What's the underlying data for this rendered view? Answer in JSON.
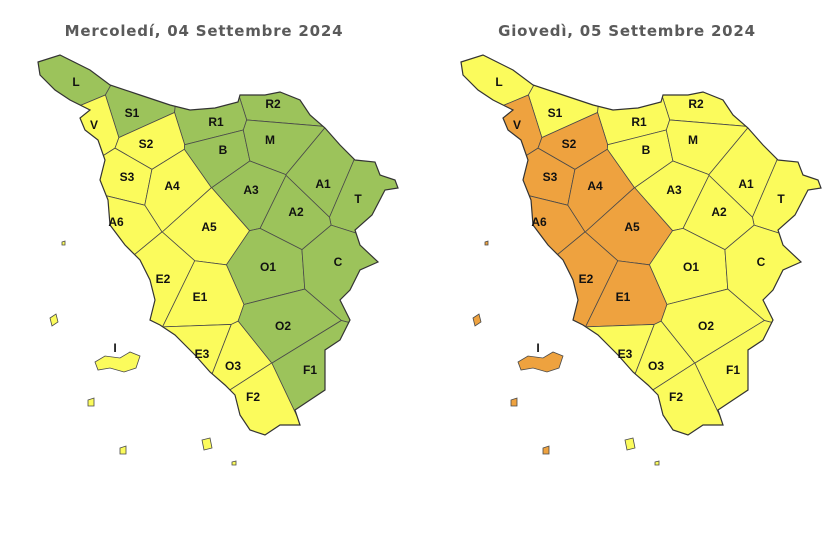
{
  "maps": [
    {
      "title": "Mercoledí, 04 Settembre 2024",
      "zones": [
        {
          "label": "L",
          "color": "#9cc35b"
        },
        {
          "label": "S1",
          "color": "#9cc35b"
        },
        {
          "label": "R2",
          "color": "#9cc35b"
        },
        {
          "label": "R1",
          "color": "#9cc35b"
        },
        {
          "label": "V",
          "color": "#fbfb5c"
        },
        {
          "label": "S2",
          "color": "#fbfb5c"
        },
        {
          "label": "B",
          "color": "#9cc35b"
        },
        {
          "label": "M",
          "color": "#9cc35b"
        },
        {
          "label": "S3",
          "color": "#fbfb5c"
        },
        {
          "label": "A4",
          "color": "#fbfb5c"
        },
        {
          "label": "A3",
          "color": "#9cc35b"
        },
        {
          "label": "A1",
          "color": "#9cc35b"
        },
        {
          "label": "T",
          "color": "#9cc35b"
        },
        {
          "label": "A6",
          "color": "#fbfb5c"
        },
        {
          "label": "A2",
          "color": "#9cc35b"
        },
        {
          "label": "A5",
          "color": "#fbfb5c"
        },
        {
          "label": "E2",
          "color": "#fbfb5c"
        },
        {
          "label": "O1",
          "color": "#9cc35b"
        },
        {
          "label": "C",
          "color": "#9cc35b"
        },
        {
          "label": "E1",
          "color": "#fbfb5c"
        },
        {
          "label": "O2",
          "color": "#9cc35b"
        },
        {
          "label": "I",
          "color": "#fbfb5c"
        },
        {
          "label": "E3",
          "color": "#fbfb5c"
        },
        {
          "label": "O3",
          "color": "#fbfb5c"
        },
        {
          "label": "F1",
          "color": "#9cc35b"
        },
        {
          "label": "F2",
          "color": "#fbfb5c"
        }
      ]
    },
    {
      "title": "Giovedì, 05 Settembre 2024",
      "zones": [
        {
          "label": "L",
          "color": "#fbfb5c"
        },
        {
          "label": "S1",
          "color": "#fbfb5c"
        },
        {
          "label": "R2",
          "color": "#fbfb5c"
        },
        {
          "label": "R1",
          "color": "#fbfb5c"
        },
        {
          "label": "V",
          "color": "#eea23f"
        },
        {
          "label": "S2",
          "color": "#eea23f"
        },
        {
          "label": "B",
          "color": "#fbfb5c"
        },
        {
          "label": "M",
          "color": "#fbfb5c"
        },
        {
          "label": "S3",
          "color": "#eea23f"
        },
        {
          "label": "A4",
          "color": "#eea23f"
        },
        {
          "label": "A3",
          "color": "#fbfb5c"
        },
        {
          "label": "A1",
          "color": "#fbfb5c"
        },
        {
          "label": "T",
          "color": "#fbfb5c"
        },
        {
          "label": "A6",
          "color": "#eea23f"
        },
        {
          "label": "A2",
          "color": "#fbfb5c"
        },
        {
          "label": "A5",
          "color": "#eea23f"
        },
        {
          "label": "E2",
          "color": "#eea23f"
        },
        {
          "label": "O1",
          "color": "#fbfb5c"
        },
        {
          "label": "C",
          "color": "#fbfb5c"
        },
        {
          "label": "E1",
          "color": "#eea23f"
        },
        {
          "label": "O2",
          "color": "#fbfb5c"
        },
        {
          "label": "I",
          "color": "#eea23f"
        },
        {
          "label": "E3",
          "color": "#fbfb5c"
        },
        {
          "label": "O3",
          "color": "#fbfb5c"
        },
        {
          "label": "F1",
          "color": "#fbfb5c"
        },
        {
          "label": "F2",
          "color": "#fbfb5c"
        }
      ]
    }
  ]
}
